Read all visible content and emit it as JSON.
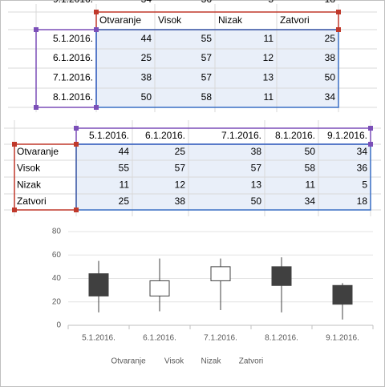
{
  "chart_data": {
    "type": "candlestick",
    "categories": [
      "5.1.2016.",
      "6.1.2016.",
      "7.1.2016.",
      "8.1.2016.",
      "9.1.2016."
    ],
    "series": [
      {
        "name": "Otvaranje",
        "values": [
          44,
          25,
          38,
          50,
          34
        ]
      },
      {
        "name": "Visok",
        "values": [
          55,
          57,
          57,
          58,
          36
        ]
      },
      {
        "name": "Nizak",
        "values": [
          11,
          12,
          13,
          11,
          5
        ]
      },
      {
        "name": "Zatvori",
        "values": [
          25,
          38,
          50,
          34,
          18
        ]
      }
    ],
    "ylim": [
      0,
      80
    ],
    "yticks": [
      0,
      20,
      40,
      60,
      80
    ],
    "grid": true,
    "up_color": "#ffffff",
    "down_color": "#404040"
  }
}
